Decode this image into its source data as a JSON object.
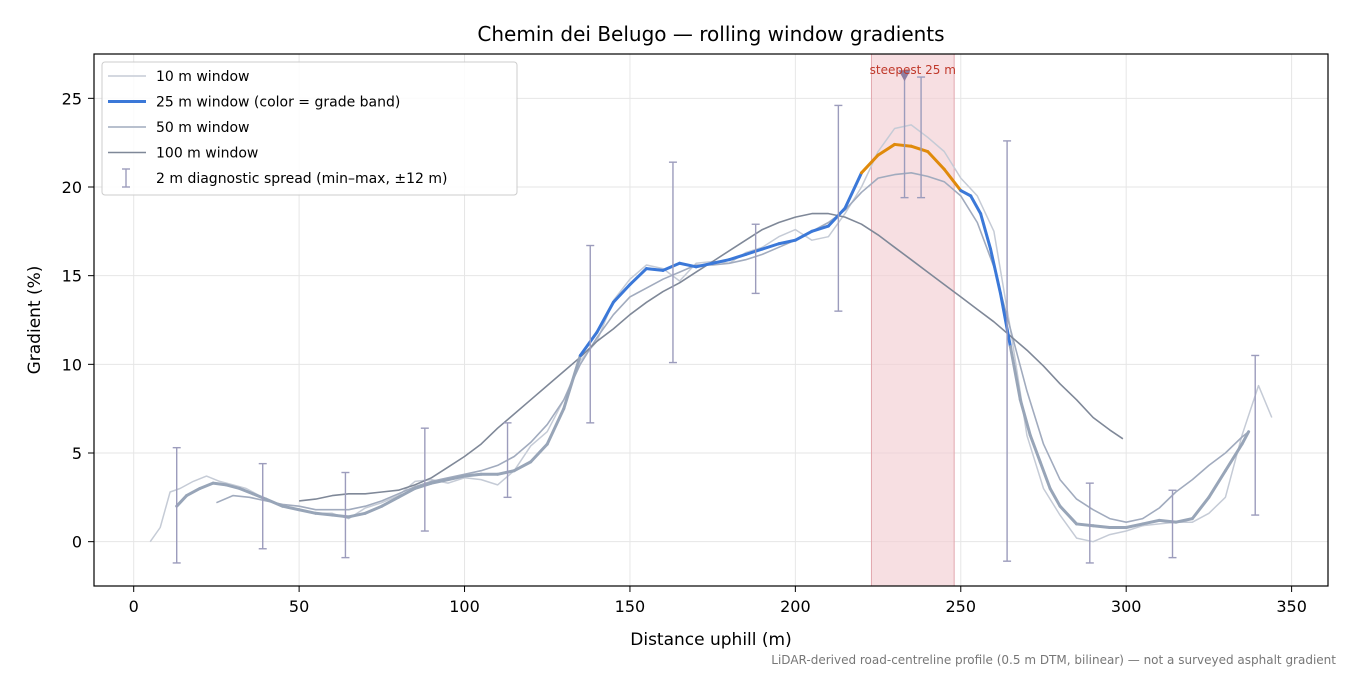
{
  "chart_data": {
    "type": "line",
    "title": "Chemin dei Belugo — rolling window gradients",
    "xlabel": "Distance uphill (m)",
    "ylabel": "Gradient (%)",
    "xlim": [
      -12,
      361
    ],
    "ylim": [
      -2.5,
      27.5
    ],
    "xticks": [
      0,
      50,
      100,
      150,
      200,
      250,
      300,
      350
    ],
    "yticks": [
      0,
      5,
      10,
      15,
      20,
      25
    ],
    "grid": true,
    "legend_placement": "upper-left",
    "legend": [
      "10 m window",
      "25 m window (color = grade band)",
      "50 m window",
      "100 m window",
      "2 m diagnostic spread (min–max, ±12 m)"
    ],
    "series": [
      {
        "name": "10 m window",
        "color": "#c5cbd6",
        "x": [
          5,
          8,
          11,
          14,
          18,
          22,
          26,
          30,
          34,
          38,
          42,
          46,
          50,
          55,
          60,
          65,
          70,
          75,
          80,
          85,
          90,
          95,
          100,
          105,
          110,
          115,
          120,
          125,
          130,
          135,
          140,
          145,
          150,
          155,
          160,
          165,
          170,
          175,
          180,
          185,
          190,
          195,
          200,
          205,
          210,
          215,
          220,
          225,
          230,
          235,
          240,
          245,
          250,
          255,
          260,
          265,
          270,
          275,
          280,
          285,
          290,
          295,
          300,
          305,
          310,
          315,
          320,
          325,
          330,
          335,
          340,
          344
        ],
        "y": [
          0,
          0.8,
          2.8,
          3.0,
          3.4,
          3.7,
          3.4,
          3.2,
          3.0,
          2.6,
          2.2,
          2.0,
          1.8,
          1.6,
          1.6,
          1.3,
          1.9,
          2.2,
          2.6,
          3.4,
          3.5,
          3.3,
          3.6,
          3.5,
          3.2,
          4.0,
          5.4,
          6.2,
          8.0,
          10.2,
          11.3,
          13.6,
          14.8,
          15.6,
          15.4,
          14.7,
          15.7,
          15.8,
          15.7,
          16.3,
          16.6,
          17.2,
          17.6,
          17.0,
          17.2,
          18.5,
          20.0,
          22.0,
          23.3,
          23.5,
          22.8,
          22.0,
          20.5,
          19.5,
          17.5,
          12.0,
          6.0,
          3.0,
          1.5,
          0.2,
          0.0,
          0.4,
          0.6,
          0.9,
          1.0,
          1.1,
          1.1,
          1.6,
          2.5,
          6.0,
          8.8,
          7.0
        ]
      },
      {
        "name": "25 m window (color = grade band)",
        "color": "#3b78d8",
        "highlight_color": "#e08a0b",
        "gray_color": "#98a5b8",
        "highlight_range": [
          219,
          250
        ],
        "x": [
          13,
          16,
          20,
          24,
          28,
          32,
          36,
          40,
          45,
          50,
          55,
          60,
          65,
          70,
          75,
          80,
          85,
          90,
          95,
          100,
          105,
          110,
          115,
          120,
          125,
          130,
          135,
          140,
          145,
          150,
          155,
          160,
          165,
          170,
          175,
          180,
          185,
          190,
          195,
          200,
          205,
          210,
          215,
          220,
          225,
          230,
          235,
          240,
          245,
          250,
          253,
          256,
          259,
          262,
          265,
          268,
          271,
          274,
          277,
          280,
          285,
          290,
          295,
          300,
          305,
          310,
          315,
          320,
          325,
          330,
          335,
          337
        ],
        "y": [
          2.0,
          2.6,
          3.0,
          3.3,
          3.2,
          3.0,
          2.7,
          2.4,
          2.0,
          1.8,
          1.6,
          1.5,
          1.4,
          1.6,
          2.0,
          2.5,
          3.0,
          3.3,
          3.5,
          3.7,
          3.8,
          3.8,
          4.0,
          4.5,
          5.5,
          7.5,
          10.5,
          11.8,
          13.5,
          14.5,
          15.4,
          15.3,
          15.7,
          15.5,
          15.7,
          15.9,
          16.2,
          16.5,
          16.8,
          17.0,
          17.5,
          17.8,
          18.8,
          20.8,
          21.8,
          22.4,
          22.3,
          22.0,
          21.0,
          19.8,
          19.5,
          18.5,
          16.5,
          14.0,
          11.0,
          8.0,
          6.0,
          4.5,
          3.0,
          2.0,
          1.0,
          0.9,
          0.8,
          0.8,
          1.0,
          1.2,
          1.1,
          1.3,
          2.5,
          4.0,
          5.5,
          6.2
        ]
      },
      {
        "name": "50 m window",
        "color": "#a1abbe",
        "x": [
          25,
          30,
          35,
          40,
          45,
          50,
          55,
          60,
          65,
          70,
          75,
          80,
          85,
          90,
          95,
          100,
          105,
          110,
          115,
          120,
          125,
          130,
          135,
          140,
          145,
          150,
          155,
          160,
          165,
          170,
          175,
          180,
          185,
          190,
          195,
          200,
          205,
          210,
          215,
          220,
          225,
          230,
          235,
          240,
          245,
          250,
          255,
          260,
          265,
          270,
          275,
          280,
          285,
          290,
          295,
          300,
          305,
          310,
          315,
          320,
          325,
          330,
          335,
          337
        ],
        "y": [
          2.2,
          2.6,
          2.5,
          2.3,
          2.1,
          2.0,
          1.8,
          1.8,
          1.8,
          2.0,
          2.3,
          2.7,
          3.1,
          3.4,
          3.6,
          3.8,
          4.0,
          4.3,
          4.8,
          5.6,
          6.6,
          8.0,
          10.0,
          11.5,
          12.8,
          13.8,
          14.3,
          14.8,
          15.2,
          15.6,
          15.6,
          15.7,
          15.9,
          16.2,
          16.6,
          17.0,
          17.5,
          18.0,
          18.7,
          19.7,
          20.5,
          20.7,
          20.8,
          20.6,
          20.3,
          19.5,
          18.0,
          15.5,
          12.0,
          8.5,
          5.5,
          3.5,
          2.4,
          1.8,
          1.3,
          1.1,
          1.3,
          1.9,
          2.8,
          3.5,
          4.3,
          5.0,
          5.9,
          6.2
        ]
      },
      {
        "name": "100 m window",
        "color": "#7f8898",
        "x": [
          50,
          55,
          60,
          65,
          70,
          75,
          80,
          85,
          90,
          95,
          100,
          105,
          110,
          115,
          120,
          125,
          130,
          135,
          140,
          145,
          150,
          155,
          160,
          165,
          170,
          175,
          180,
          185,
          190,
          195,
          200,
          205,
          210,
          215,
          220,
          225,
          230,
          235,
          240,
          245,
          250,
          255,
          260,
          265,
          270,
          275,
          280,
          285,
          290,
          295,
          299
        ],
        "y": [
          2.3,
          2.4,
          2.6,
          2.7,
          2.7,
          2.8,
          2.9,
          3.2,
          3.6,
          4.2,
          4.8,
          5.5,
          6.4,
          7.2,
          8.0,
          8.8,
          9.6,
          10.4,
          11.3,
          12.0,
          12.8,
          13.5,
          14.1,
          14.6,
          15.2,
          15.8,
          16.4,
          17.0,
          17.6,
          18.0,
          18.3,
          18.5,
          18.5,
          18.3,
          17.9,
          17.3,
          16.6,
          15.9,
          15.2,
          14.5,
          13.8,
          13.1,
          12.4,
          11.6,
          10.8,
          9.9,
          8.9,
          8.0,
          7.0,
          6.3,
          5.8
        ]
      },
      {
        "name": "2 m diagnostic spread (min–max, ±12 m)",
        "type": "errorbar",
        "color": "#9c9cbc",
        "x": [
          13,
          39,
          64,
          88,
          113,
          138,
          163,
          188,
          213,
          233,
          238,
          264,
          289,
          314,
          339
        ],
        "low": [
          -1.2,
          -0.4,
          -0.9,
          0.6,
          2.5,
          6.7,
          10.1,
          14.0,
          13.0,
          19.4,
          19.4,
          -1.1,
          -1.2,
          -0.9,
          1.5
        ],
        "high": [
          5.3,
          4.4,
          3.9,
          6.4,
          6.7,
          16.7,
          21.4,
          17.9,
          24.6,
          26.5,
          26.2,
          22.6,
          3.3,
          2.9,
          10.5
        ]
      }
    ],
    "annotations": [
      {
        "text": "steepest 25 m",
        "type": "span",
        "x_range": [
          223,
          248
        ],
        "color": "#f2ccd0",
        "label_color": "#c0392b",
        "marker_x": 233,
        "marker_y": 26.3
      }
    ],
    "footnote": "LiDAR-derived road-centreline profile (0.5 m DTM, bilinear) — not a surveyed asphalt gradient"
  }
}
